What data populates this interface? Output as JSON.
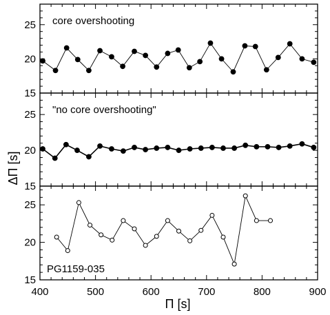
{
  "chart_data": {
    "type": "line",
    "ylabel": "ΔΠ [s]",
    "xlabel": "Π [s]",
    "xlim": [
      400,
      900
    ],
    "x_ticks": [
      400,
      500,
      600,
      700,
      800,
      900
    ],
    "x_minor_step": 20,
    "grid": false,
    "panels": [
      {
        "annotation": "core overshooting",
        "annotation_pos": "top-left",
        "ylim": [
          15,
          28
        ],
        "y_ticks": [
          15,
          20,
          25
        ],
        "marker": "filled-circle",
        "series": [
          {
            "x": [
              405,
              428,
              448,
              468,
              488,
              508,
              529,
              549,
              570,
              590,
              610,
              630,
              649,
              669,
              688,
              707,
              727,
              748,
              769,
              788,
              808,
              829,
              850,
              872,
              893
            ],
            "y": [
              19.7,
              18.3,
              21.6,
              19.9,
              18.3,
              21.2,
              20.3,
              18.9,
              21.1,
              20.5,
              18.8,
              20.8,
              21.3,
              18.7,
              19.6,
              22.3,
              20.0,
              18.1,
              21.9,
              21.8,
              18.4,
              20.2,
              22.2,
              20.0,
              19.5
            ]
          }
        ]
      },
      {
        "annotation": "\"no core overshooting\"",
        "annotation_pos": "top-left",
        "ylim": [
          15,
          28
        ],
        "y_ticks": [
          15,
          20,
          25
        ],
        "marker": "filled-circle",
        "series": [
          {
            "x": [
              405,
              427,
              447,
              467,
              488,
              508,
              529,
              550,
              570,
              590,
              610,
              630,
              650,
              670,
              690,
              710,
              730,
              750,
              770,
              790,
              810,
              830,
              850,
              872,
              893
            ],
            "y": [
              20.2,
              18.9,
              20.8,
              20.0,
              19.1,
              20.6,
              20.2,
              19.9,
              20.4,
              20.1,
              20.3,
              20.4,
              20.0,
              20.2,
              20.3,
              20.4,
              20.3,
              20.3,
              20.7,
              20.5,
              20.5,
              20.4,
              20.6,
              20.9,
              20.4
            ]
          }
        ]
      },
      {
        "annotation": "PG1159-035",
        "annotation_pos": "bottom-left",
        "ylim": [
          15,
          27.5
        ],
        "y_ticks": [
          15,
          20,
          25
        ],
        "marker": "open-circle",
        "series": [
          {
            "x": [
              430,
              450,
              470,
              490,
              510,
              530,
              550,
              570,
              590,
              610,
              630,
              650,
              670,
              690,
              710,
              730,
              750,
              770,
              790,
              815
            ],
            "y": [
              20.7,
              18.9,
              25.3,
              22.3,
              21.0,
              20.3,
              22.9,
              21.8,
              19.6,
              20.8,
              22.9,
              21.5,
              20.2,
              21.6,
              23.6,
              20.7,
              17.1,
              26.2,
              22.9,
              22.9
            ]
          }
        ]
      }
    ]
  }
}
